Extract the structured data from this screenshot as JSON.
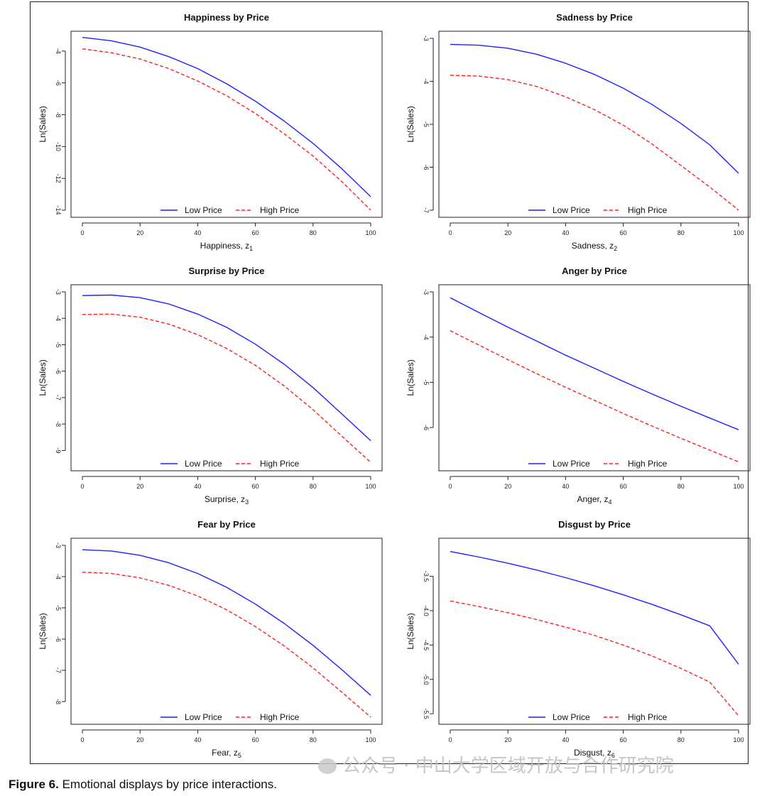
{
  "figure": {
    "caption_label": "Figure 6.",
    "caption_text": "Emotional displays by price interactions.",
    "watermark_text": "公众号 · 中山大学区域开放与合作研究院"
  },
  "legend": {
    "low": "Low Price",
    "high": "High Price"
  },
  "colors": {
    "low": "#1f1fff",
    "high": "#ff1f1f",
    "axis": "#222222"
  },
  "chart_data": [
    {
      "type": "line",
      "title": "Happiness by Price",
      "xlabel": "Happiness, z",
      "xlabel_sub": "1",
      "ylabel": "Ln(Sales)",
      "xlim": [
        0,
        100
      ],
      "ylim": [
        -14,
        -3.2
      ],
      "xticks": [
        0,
        20,
        40,
        60,
        80,
        100
      ],
      "yticks": [
        -4,
        -6,
        -8,
        -10,
        -12,
        -14
      ],
      "legend_position": "bottom-center",
      "x": [
        0,
        10,
        20,
        30,
        40,
        50,
        60,
        70,
        80,
        90,
        100
      ],
      "series": [
        {
          "name": "Low Price",
          "style": "solid",
          "values": [
            -3.14,
            -3.35,
            -3.75,
            -4.35,
            -5.1,
            -6.05,
            -7.15,
            -8.4,
            -9.8,
            -11.4,
            -13.15
          ]
        },
        {
          "name": "High Price",
          "style": "dashed",
          "values": [
            -3.86,
            -4.1,
            -4.5,
            -5.1,
            -5.88,
            -6.8,
            -7.92,
            -9.2,
            -10.6,
            -12.2,
            -14.0
          ]
        }
      ]
    },
    {
      "type": "line",
      "title": "Sadness by Price",
      "xlabel": "Sadness, z",
      "xlabel_sub": "2",
      "ylabel": "Ln(Sales)",
      "xlim": [
        0,
        100
      ],
      "ylim": [
        -7,
        -3
      ],
      "xticks": [
        0,
        20,
        40,
        60,
        80,
        100
      ],
      "yticks": [
        -3,
        -4,
        -5,
        -6,
        -7
      ],
      "legend_position": "bottom-center",
      "x": [
        0,
        10,
        20,
        30,
        40,
        50,
        60,
        70,
        80,
        90,
        100
      ],
      "series": [
        {
          "name": "Low Price",
          "style": "solid",
          "values": [
            -3.14,
            -3.16,
            -3.23,
            -3.37,
            -3.58,
            -3.84,
            -4.16,
            -4.54,
            -4.98,
            -5.48,
            -6.14
          ]
        },
        {
          "name": "High Price",
          "style": "dashed",
          "values": [
            -3.86,
            -3.88,
            -3.96,
            -4.12,
            -4.36,
            -4.66,
            -5.02,
            -5.46,
            -5.96,
            -6.46,
            -7.0
          ]
        }
      ]
    },
    {
      "type": "line",
      "title": "Surprise by Price",
      "xlabel": "Surprise, z",
      "xlabel_sub": "3",
      "ylabel": "Ln(Sales)",
      "xlim": [
        0,
        100
      ],
      "ylim": [
        -9.5,
        -3
      ],
      "xticks": [
        0,
        20,
        40,
        60,
        80,
        100
      ],
      "yticks": [
        -3,
        -4,
        -5,
        -6,
        -7,
        -8,
        -9
      ],
      "legend_position": "bottom-center",
      "x": [
        0,
        10,
        20,
        30,
        40,
        50,
        60,
        70,
        80,
        90,
        100
      ],
      "series": [
        {
          "name": "Low Price",
          "style": "solid",
          "values": [
            -3.14,
            -3.12,
            -3.22,
            -3.46,
            -3.84,
            -4.34,
            -4.98,
            -5.74,
            -6.62,
            -7.62,
            -8.63
          ]
        },
        {
          "name": "High Price",
          "style": "dashed",
          "values": [
            -3.86,
            -3.84,
            -3.96,
            -4.22,
            -4.62,
            -5.14,
            -5.78,
            -6.56,
            -7.46,
            -8.46,
            -9.45
          ]
        }
      ]
    },
    {
      "type": "line",
      "title": "Anger by Price",
      "xlabel": "Anger, z",
      "xlabel_sub": "4",
      "ylabel": "Ln(Sales)",
      "xlim": [
        0,
        100
      ],
      "ylim": [
        -6.8,
        -3
      ],
      "xticks": [
        0,
        20,
        40,
        60,
        80,
        100
      ],
      "yticks": [
        -3,
        -4,
        -5,
        -6
      ],
      "legend_position": "bottom-center",
      "x": [
        0,
        10,
        20,
        30,
        40,
        50,
        60,
        70,
        80,
        90,
        100
      ],
      "series": [
        {
          "name": "Low Price",
          "style": "solid",
          "values": [
            -3.13,
            -3.46,
            -3.78,
            -4.09,
            -4.4,
            -4.69,
            -4.98,
            -5.26,
            -5.53,
            -5.79,
            -6.05
          ]
        },
        {
          "name": "High Price",
          "style": "dashed",
          "values": [
            -3.86,
            -4.18,
            -4.5,
            -4.81,
            -5.11,
            -5.4,
            -5.69,
            -5.97,
            -6.24,
            -6.5,
            -6.76
          ]
        }
      ]
    },
    {
      "type": "line",
      "title": "Fear by Price",
      "xlabel": "Fear, z",
      "xlabel_sub": "5",
      "ylabel": "Ln(Sales)",
      "xlim": [
        0,
        100
      ],
      "ylim": [
        -8.5,
        -3
      ],
      "xticks": [
        0,
        20,
        40,
        60,
        80,
        100
      ],
      "yticks": [
        -3,
        -4,
        -5,
        -6,
        -7,
        -8
      ],
      "legend_position": "bottom-center",
      "x": [
        0,
        10,
        20,
        30,
        40,
        50,
        60,
        70,
        80,
        90,
        100
      ],
      "series": [
        {
          "name": "Low Price",
          "style": "solid",
          "values": [
            -3.14,
            -3.18,
            -3.32,
            -3.56,
            -3.9,
            -4.34,
            -4.88,
            -5.5,
            -6.2,
            -6.98,
            -7.8
          ]
        },
        {
          "name": "High Price",
          "style": "dashed",
          "values": [
            -3.86,
            -3.9,
            -4.04,
            -4.28,
            -4.62,
            -5.06,
            -5.6,
            -6.22,
            -6.92,
            -7.7,
            -8.5
          ]
        }
      ]
    },
    {
      "type": "line",
      "title": "Disgust by Price",
      "xlabel": "Disgust, z",
      "xlabel_sub": "6",
      "ylabel": "Ln(Sales)",
      "xlim": [
        0,
        100
      ],
      "ylim": [
        -5.55,
        -3.05
      ],
      "xticks": [
        0,
        20,
        40,
        60,
        80,
        100
      ],
      "yticks": [
        -3.5,
        -4.0,
        -4.5,
        -5.0,
        -5.5
      ],
      "ytick_labels": [
        "-3.5",
        "-4.0",
        "-4.5",
        "-5.0",
        "-5.5"
      ],
      "legend_position": "bottom-center",
      "x": [
        0,
        10,
        20,
        30,
        40,
        50,
        60,
        70,
        80,
        90,
        100
      ],
      "series": [
        {
          "name": "Low Price",
          "style": "solid",
          "values": [
            -3.14,
            -3.22,
            -3.31,
            -3.41,
            -3.52,
            -3.64,
            -3.77,
            -3.91,
            -4.06,
            -4.22,
            -4.78
          ]
        },
        {
          "name": "High Price",
          "style": "dashed",
          "values": [
            -3.86,
            -3.94,
            -4.03,
            -4.13,
            -4.24,
            -4.36,
            -4.5,
            -4.66,
            -4.84,
            -5.04,
            -5.53
          ]
        }
      ]
    }
  ]
}
